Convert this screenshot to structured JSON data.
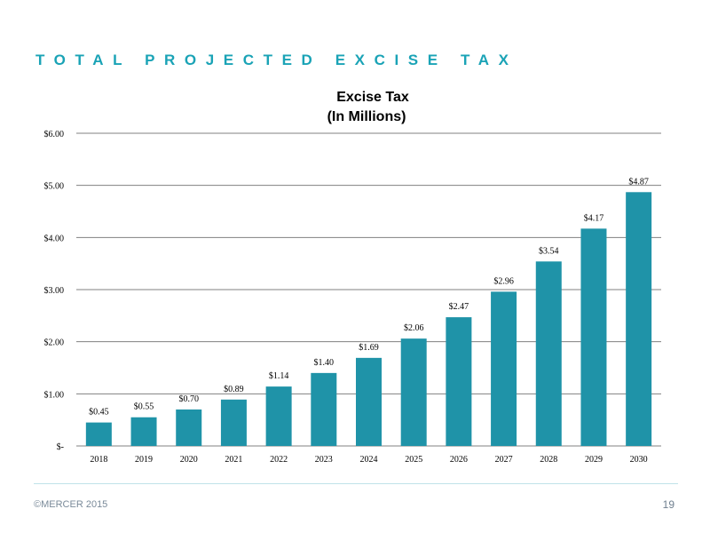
{
  "slide": {
    "title": "TOTAL PROJECTED EXCISE TAX",
    "footer_copyright": "©MERCER 2015",
    "page_number": "19"
  },
  "colors": {
    "title": "#1aa3b6",
    "bar": "#1f93a8",
    "grid": "#808080"
  },
  "chart_data": {
    "type": "bar",
    "title_lines": [
      "Excise    Tax",
      "(In   Millions)"
    ],
    "categories": [
      "2018",
      "2019",
      "2020",
      "2021",
      "2022",
      "2023",
      "2024",
      "2025",
      "2026",
      "2027",
      "2028",
      "2029",
      "2030"
    ],
    "values": [
      0.45,
      0.55,
      0.7,
      0.89,
      1.14,
      1.4,
      1.69,
      2.06,
      2.47,
      2.96,
      3.54,
      4.17,
      4.87
    ],
    "data_labels": [
      "$0.45",
      "$0.55",
      "$0.70",
      "$0.89",
      "$1.14",
      "$1.40",
      "$1.69",
      "$2.06",
      "$2.47",
      "$2.96",
      "$3.54",
      "$4.17",
      "$4.87"
    ],
    "yticks": [
      0,
      1,
      2,
      3,
      4,
      5,
      6
    ],
    "ytick_labels": [
      "$-",
      "$1.00",
      "$2.00",
      "$3.00",
      "$4.00",
      "$5.00",
      "$6.00"
    ],
    "ylim": [
      0,
      6
    ],
    "grid": true,
    "legend": "none"
  }
}
